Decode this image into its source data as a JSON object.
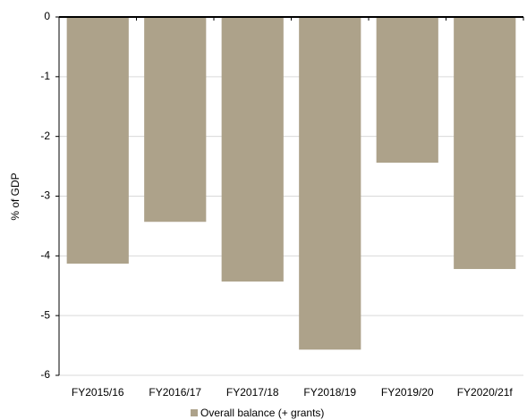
{
  "chart_data": {
    "type": "bar",
    "y_label": "% of GDP",
    "categories": [
      "FY2015/16",
      "FY2016/17",
      "FY2017/18",
      "FY2018/19",
      "FY2019/20",
      "FY2020/21f"
    ],
    "series": [
      {
        "name": "Overall balance (+ grants)",
        "color": "#ada28a",
        "values": [
          -4.13,
          -3.43,
          -4.43,
          -5.57,
          -2.44,
          -4.22
        ]
      }
    ],
    "ylim": [
      -6,
      0
    ],
    "yticks": [
      0,
      -1,
      -2,
      -3,
      -4,
      -5,
      -6
    ],
    "grid": true,
    "legend": "bottom"
  }
}
